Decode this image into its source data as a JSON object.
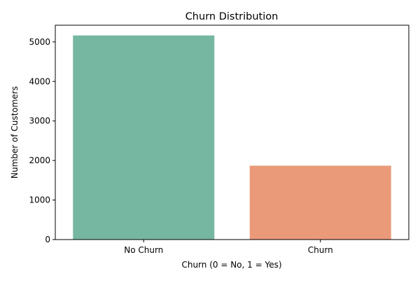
{
  "chart_data": {
    "type": "bar",
    "title": "Churn Distribution",
    "xlabel": "Churn (0 = No, 1 = Yes)",
    "ylabel": "Number of Customers",
    "categories": [
      "No Churn",
      "Churn"
    ],
    "values": [
      5163,
      1869
    ],
    "colors": [
      "#76b7a2",
      "#ea9a79"
    ],
    "ylim": [
      0,
      5422
    ],
    "yticks": [
      0,
      1000,
      2000,
      3000,
      4000,
      5000
    ],
    "ytick_labels": [
      "0",
      "1000",
      "2000",
      "3000",
      "4000",
      "5000"
    ],
    "grid": false,
    "legend": "none"
  }
}
